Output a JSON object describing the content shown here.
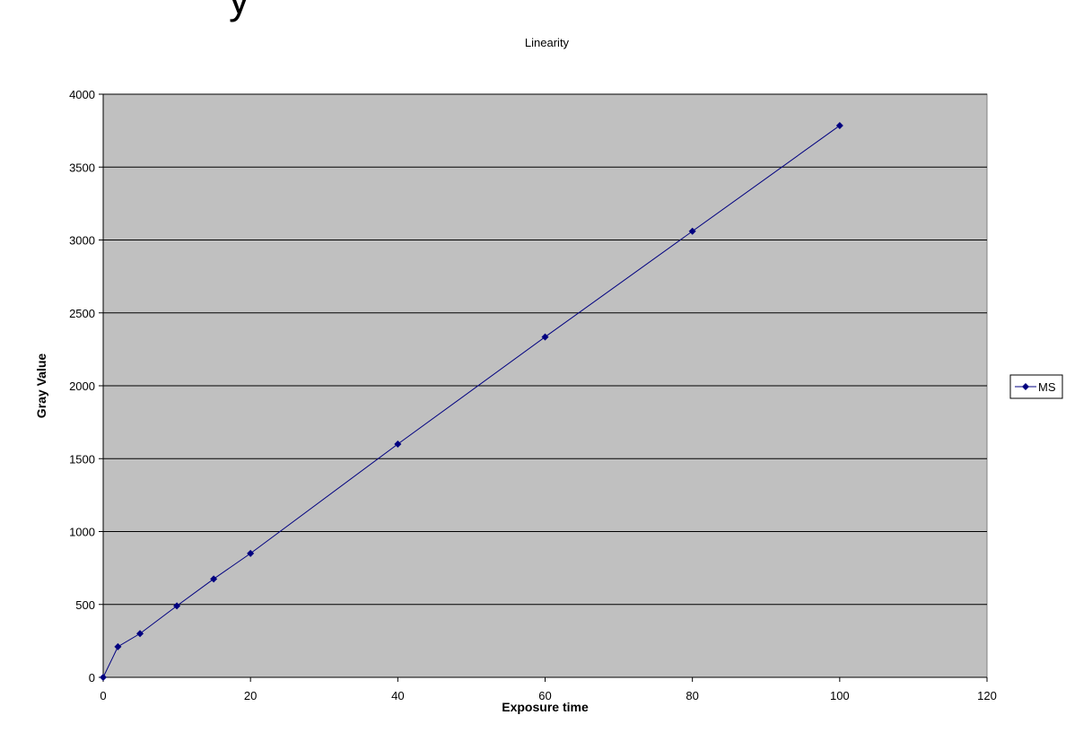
{
  "page": {
    "clipped_heading": "y"
  },
  "chart_data": {
    "type": "line",
    "title": "Linearity",
    "xlabel": "Exposure time",
    "ylabel": "Gray Value",
    "xlim": [
      0,
      120
    ],
    "ylim": [
      0,
      4000
    ],
    "xticks": [
      0,
      20,
      40,
      60,
      80,
      100,
      120
    ],
    "yticks": [
      0,
      500,
      1000,
      1500,
      2000,
      2500,
      3000,
      3500,
      4000
    ],
    "grid": "horizontal",
    "legend_position": "right",
    "plot_background": "#c0c0c0",
    "series": [
      {
        "name": "MS",
        "color": "#000080",
        "marker": "diamond",
        "x": [
          0,
          2,
          5,
          10,
          15,
          20,
          40,
          60,
          80,
          100
        ],
        "y": [
          0,
          210,
          300,
          490,
          675,
          850,
          1600,
          2335,
          3060,
          3785
        ]
      }
    ]
  }
}
